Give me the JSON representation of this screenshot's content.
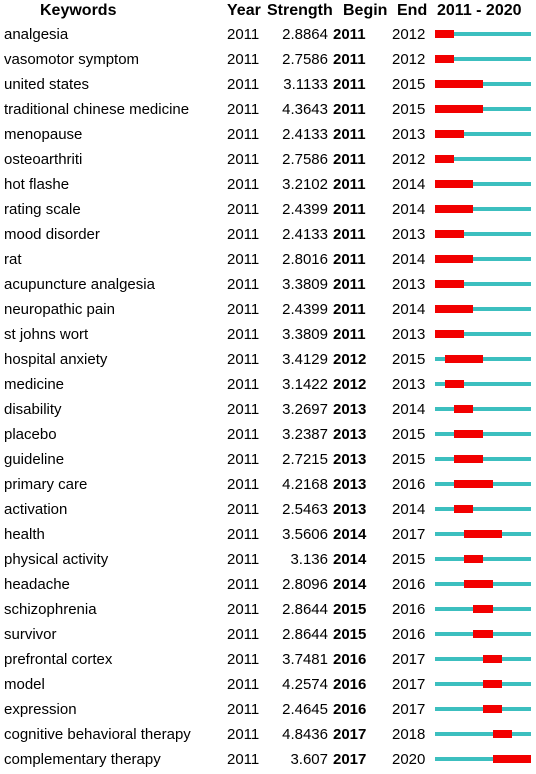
{
  "headers": {
    "keywords": "Keywords",
    "year": "Year",
    "strength": "Strength",
    "begin": "Begin",
    "end": "End",
    "range": "2011 - 2020"
  },
  "colors": {
    "timeline": "#3cbfbf",
    "burst": "#f20000"
  },
  "chart_data": {
    "type": "table",
    "timeline_start": 2011,
    "timeline_end": 2020,
    "rows": [
      {
        "keyword": "analgesia",
        "year": "2011",
        "strength": "2.8864",
        "begin": "2011",
        "end": "2012"
      },
      {
        "keyword": "vasomotor symptom",
        "year": "2011",
        "strength": "2.7586",
        "begin": "2011",
        "end": "2012"
      },
      {
        "keyword": "united states",
        "year": "2011",
        "strength": "3.1133",
        "begin": "2011",
        "end": "2015"
      },
      {
        "keyword": "traditional chinese medicine",
        "year": "2011",
        "strength": "4.3643",
        "begin": "2011",
        "end": "2015"
      },
      {
        "keyword": "menopause",
        "year": "2011",
        "strength": "2.4133",
        "begin": "2011",
        "end": "2013"
      },
      {
        "keyword": "osteoarthriti",
        "year": "2011",
        "strength": "2.7586",
        "begin": "2011",
        "end": "2012"
      },
      {
        "keyword": "hot flashe",
        "year": "2011",
        "strength": "3.2102",
        "begin": "2011",
        "end": "2014"
      },
      {
        "keyword": "rating scale",
        "year": "2011",
        "strength": "2.4399",
        "begin": "2011",
        "end": "2014"
      },
      {
        "keyword": "mood disorder",
        "year": "2011",
        "strength": "2.4133",
        "begin": "2011",
        "end": "2013"
      },
      {
        "keyword": "rat",
        "year": "2011",
        "strength": "2.8016",
        "begin": "2011",
        "end": "2014"
      },
      {
        "keyword": "acupuncture analgesia",
        "year": "2011",
        "strength": "3.3809",
        "begin": "2011",
        "end": "2013"
      },
      {
        "keyword": "neuropathic pain",
        "year": "2011",
        "strength": "2.4399",
        "begin": "2011",
        "end": "2014"
      },
      {
        "keyword": "st johns wort",
        "year": "2011",
        "strength": "3.3809",
        "begin": "2011",
        "end": "2013"
      },
      {
        "keyword": "hospital anxiety",
        "year": "2011",
        "strength": "3.4129",
        "begin": "2012",
        "end": "2015"
      },
      {
        "keyword": "medicine",
        "year": "2011",
        "strength": "3.1422",
        "begin": "2012",
        "end": "2013"
      },
      {
        "keyword": "disability",
        "year": "2011",
        "strength": "3.2697",
        "begin": "2013",
        "end": "2014"
      },
      {
        "keyword": "placebo",
        "year": "2011",
        "strength": "3.2387",
        "begin": "2013",
        "end": "2015"
      },
      {
        "keyword": "guideline",
        "year": "2011",
        "strength": "2.7215",
        "begin": "2013",
        "end": "2015"
      },
      {
        "keyword": "primary care",
        "year": "2011",
        "strength": "4.2168",
        "begin": "2013",
        "end": "2016"
      },
      {
        "keyword": "activation",
        "year": "2011",
        "strength": "2.5463",
        "begin": "2013",
        "end": "2014"
      },
      {
        "keyword": "health",
        "year": "2011",
        "strength": "3.5606",
        "begin": "2014",
        "end": "2017"
      },
      {
        "keyword": "physical activity",
        "year": "2011",
        "strength": "3.136",
        "begin": "2014",
        "end": "2015"
      },
      {
        "keyword": "headache",
        "year": "2011",
        "strength": "2.8096",
        "begin": "2014",
        "end": "2016"
      },
      {
        "keyword": "schizophrenia",
        "year": "2011",
        "strength": "2.8644",
        "begin": "2015",
        "end": "2016"
      },
      {
        "keyword": "survivor",
        "year": "2011",
        "strength": "2.8644",
        "begin": "2015",
        "end": "2016"
      },
      {
        "keyword": "prefrontal cortex",
        "year": "2011",
        "strength": "3.7481",
        "begin": "2016",
        "end": "2017"
      },
      {
        "keyword": "model",
        "year": "2011",
        "strength": "4.2574",
        "begin": "2016",
        "end": "2017"
      },
      {
        "keyword": "expression",
        "year": "2011",
        "strength": "2.4645",
        "begin": "2016",
        "end": "2017"
      },
      {
        "keyword": "cognitive behavioral therapy",
        "year": "2011",
        "strength": "4.8436",
        "begin": "2017",
        "end": "2018"
      },
      {
        "keyword": "complementary therapy",
        "year": "2011",
        "strength": "3.607",
        "begin": "2017",
        "end": "2020"
      }
    ]
  }
}
